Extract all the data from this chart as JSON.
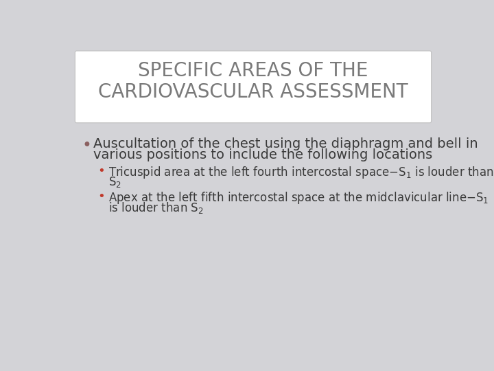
{
  "background_color": "#d3d3d7",
  "title_box_color": "#ffffff",
  "title_box_edge_color": "#c0c0c0",
  "title_line1": "SPECIFIC AREAS OF THE",
  "title_line2": "CARDIOVASCULAR ASSESSMENT",
  "title_color": "#7a7a7a",
  "title_fontsize": 20,
  "bullet1_line1": "Auscultation of the chest using the diaphragm and bell in",
  "bullet1_line2": "various positions to include the following locations",
  "bullet1_color": "#3a3a3a",
  "bullet1_fontsize": 14,
  "sub1_line1a": "Tricuspid area at the left fourth intercostal space–S",
  "sub1_line1b": "1",
  "sub1_line1c": " is louder than",
  "sub1_line2a": "S",
  "sub1_line2b": "2",
  "sub2_line1a": "Apex at the left fifth intercostal space at the midclavicular line–S",
  "sub2_line1b": "1",
  "sub2_line2a": "is louder than S",
  "sub2_line2b": "2",
  "sub_bullet_color": "#3a3a3a",
  "sub_bullet_fontsize": 12,
  "main_dot_color": "#8b6060",
  "sub_dot_color": "#c0392b"
}
